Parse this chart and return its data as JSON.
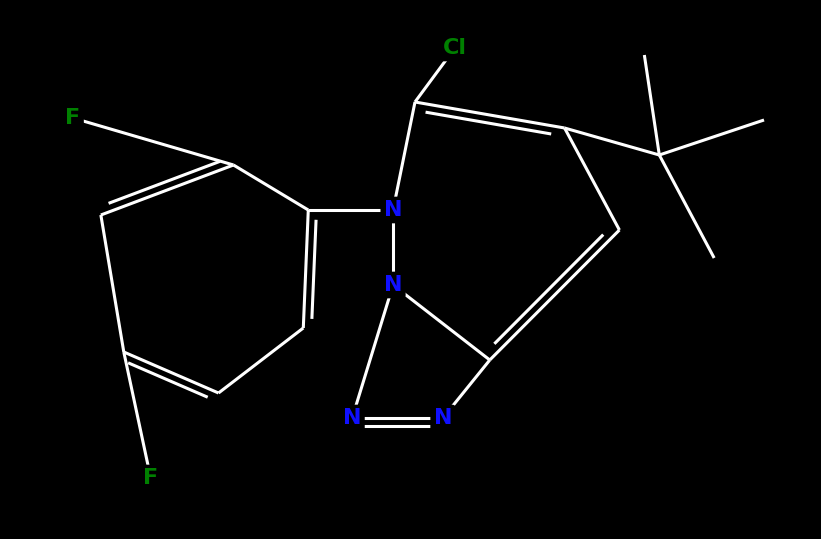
{
  "background_color": "#000000",
  "bond_color": "#ffffff",
  "N_color": "#1010ff",
  "F_color": "#008000",
  "Cl_color": "#008000",
  "bond_width": 2.2,
  "dbo": 0.12,
  "font_size_atom": 16,
  "fig_width": 8.21,
  "fig_height": 5.39,
  "dpi": 100,
  "xlim": [
    0,
    12
  ],
  "ylim": [
    0,
    7.9
  ]
}
